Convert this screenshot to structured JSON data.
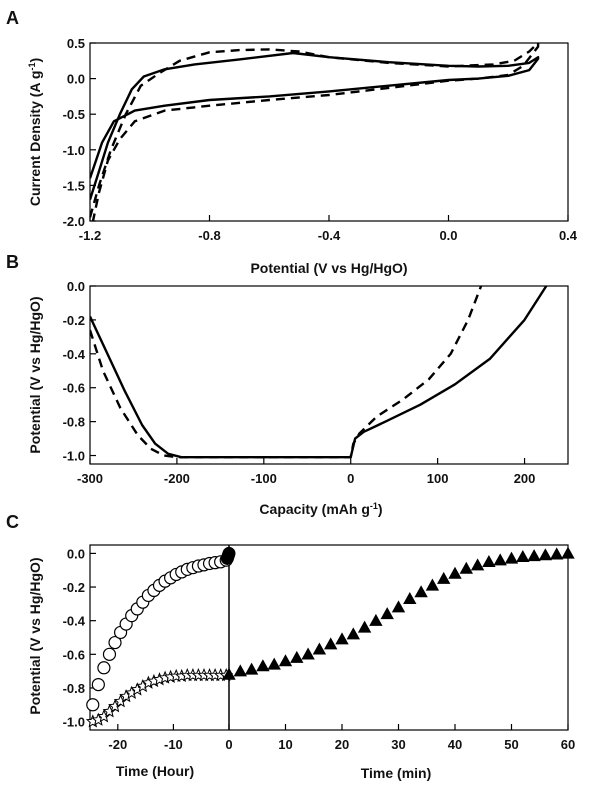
{
  "chart_data": [
    {
      "panel": "A",
      "type": "line",
      "xlabel": "Potential (V vs Hg/HgO)",
      "ylabel_main": "Current Density (A g",
      "ylabel_sup": "-1",
      "ylabel_tail": ")",
      "xlim": [
        -1.2,
        0.4
      ],
      "ylim": [
        -2.0,
        0.5
      ],
      "xticks": [
        "-1.2",
        "-0.8",
        "-0.4",
        "0.0",
        "0.4"
      ],
      "xtick_values": [
        -1.2,
        -0.8,
        -0.4,
        0.0,
        0.4
      ],
      "yticks": [
        "0.5",
        "0.0",
        "-0.5",
        "-1.0",
        "-1.5",
        "-2.0"
      ],
      "ytick_values": [
        0.5,
        0.0,
        -0.5,
        -1.0,
        -1.5,
        -2.0
      ],
      "series": [
        {
          "style": "solid",
          "x": [
            -1.2,
            -1.17,
            -1.14,
            -1.1,
            -1.06,
            -1.02,
            -0.95,
            -0.85,
            -0.7,
            -0.52,
            -0.4,
            -0.2,
            0.0,
            0.1,
            0.2,
            0.27,
            0.3,
            0.3,
            0.27,
            0.2,
            0.1,
            0.0,
            -0.2,
            -0.4,
            -0.6,
            -0.8,
            -0.95,
            -1.05,
            -1.12,
            -1.16,
            -1.2
          ],
          "y": [
            -1.7,
            -1.3,
            -0.9,
            -0.5,
            -0.15,
            0.03,
            0.13,
            0.2,
            0.27,
            0.36,
            0.3,
            0.23,
            0.18,
            0.17,
            0.18,
            0.22,
            0.3,
            0.28,
            0.12,
            0.04,
            0.0,
            -0.02,
            -0.1,
            -0.18,
            -0.25,
            -0.3,
            -0.38,
            -0.45,
            -0.6,
            -0.9,
            -1.4
          ]
        },
        {
          "style": "dashed",
          "x": [
            -1.2,
            -1.17,
            -1.13,
            -1.08,
            -1.03,
            -0.97,
            -0.9,
            -0.8,
            -0.7,
            -0.6,
            -0.5,
            -0.4,
            -0.2,
            0.0,
            0.15,
            0.22,
            0.27,
            0.3,
            0.3,
            0.25,
            0.2,
            0.1,
            0.0,
            -0.2,
            -0.4,
            -0.6,
            -0.8,
            -0.95,
            -1.05,
            -1.1,
            -1.14,
            -1.17,
            -1.19
          ],
          "y": [
            -1.95,
            -1.5,
            -1.0,
            -0.5,
            -0.1,
            0.07,
            0.25,
            0.37,
            0.4,
            0.41,
            0.38,
            0.3,
            0.22,
            0.17,
            0.2,
            0.25,
            0.38,
            0.5,
            0.45,
            0.18,
            0.05,
            0.0,
            -0.03,
            -0.13,
            -0.23,
            -0.3,
            -0.38,
            -0.45,
            -0.6,
            -0.85,
            -1.15,
            -1.6,
            -2.0
          ]
        }
      ]
    },
    {
      "panel": "B",
      "type": "line",
      "xlabel_main": "Capacity (mAh g",
      "xlabel_sup": "-1",
      "xlabel_tail": ")",
      "ylabel": "Potential (V vs Hg/HgO)",
      "xlim": [
        -300,
        250
      ],
      "ylim": [
        -1.05,
        0.0
      ],
      "xticks": [
        "-300",
        "-200",
        "-100",
        "0",
        "100",
        "200"
      ],
      "xtick_values": [
        -300,
        -200,
        -100,
        0,
        100,
        200
      ],
      "yticks": [
        "0.0",
        "-0.2",
        "-0.4",
        "-0.6",
        "-0.8",
        "-1.0"
      ],
      "ytick_values": [
        0.0,
        -0.2,
        -0.4,
        -0.6,
        -0.8,
        -1.0
      ],
      "series": [
        {
          "style": "solid",
          "x": [
            -300,
            -280,
            -260,
            -240,
            -225,
            -210,
            -195,
            -150,
            -100,
            -50,
            -10,
            0,
            5,
            15,
            40,
            80,
            120,
            160,
            200,
            225
          ],
          "y": [
            -0.18,
            -0.4,
            -0.62,
            -0.82,
            -0.93,
            -0.99,
            -1.01,
            -1.01,
            -1.01,
            -1.01,
            -1.01,
            -1.01,
            -0.9,
            -0.86,
            -0.8,
            -0.7,
            -0.58,
            -0.43,
            -0.2,
            0.0
          ],
          "name": ""
        },
        {
          "style": "dashed",
          "x": [
            -300,
            -285,
            -265,
            -245,
            -230,
            -215,
            -200,
            -150,
            -100,
            -50,
            -10,
            0,
            3,
            10,
            30,
            60,
            90,
            115,
            135,
            150
          ],
          "y": [
            -0.26,
            -0.5,
            -0.72,
            -0.88,
            -0.96,
            -1.0,
            -1.01,
            -1.01,
            -1.01,
            -1.01,
            -1.01,
            -1.01,
            -0.93,
            -0.87,
            -0.77,
            -0.67,
            -0.55,
            -0.4,
            -0.2,
            0.0
          ]
        }
      ]
    },
    {
      "panel": "C",
      "type": "scatter",
      "ylabel": "Potential (V vs Hg/HgO)",
      "xlabel_left": "Time (Hour)",
      "xlabel_right": "Time (min)",
      "xlim_left": [
        -25,
        0
      ],
      "xlim_right": [
        0,
        60
      ],
      "ylim": [
        -1.05,
        0.05
      ],
      "xticks_left": [
        "-20",
        "-10",
        "0"
      ],
      "xtick_values_left": [
        -20,
        -10,
        0
      ],
      "xticks_right": [
        "10",
        "20",
        "30",
        "40",
        "50",
        "60"
      ],
      "xtick_values_right": [
        10,
        20,
        30,
        40,
        50,
        60
      ],
      "yticks": [
        "0.0",
        "-0.2",
        "-0.4",
        "-0.6",
        "-0.8",
        "-1.0"
      ],
      "ytick_values": [
        0.0,
        -0.2,
        -0.4,
        -0.6,
        -0.8,
        -1.0
      ],
      "series": [
        {
          "marker": "circle-open",
          "axis": "left",
          "x": [
            -24.5,
            -23.5,
            -22.5,
            -21.5,
            -20.5,
            -19.5,
            -18.5,
            -17.5,
            -16.5,
            -15.5,
            -14.5,
            -13.5,
            -12.5,
            -11.5,
            -10.5,
            -9.5,
            -8.5,
            -7.5,
            -6.5,
            -5.5,
            -4.5,
            -3.5,
            -2.5,
            -1.5,
            -0.5
          ],
          "y": [
            -0.9,
            -0.78,
            -0.68,
            -0.6,
            -0.53,
            -0.47,
            -0.42,
            -0.37,
            -0.33,
            -0.29,
            -0.25,
            -0.22,
            -0.19,
            -0.165,
            -0.145,
            -0.125,
            -0.11,
            -0.095,
            -0.085,
            -0.075,
            -0.068,
            -0.06,
            -0.055,
            -0.05,
            -0.04
          ]
        },
        {
          "marker": "circle-filled",
          "axis": "left",
          "x": [
            -0.3,
            -0.2,
            -0.1,
            0.0
          ],
          "y": [
            -0.03,
            -0.02,
            -0.01,
            0.0
          ]
        },
        {
          "marker": "star-open",
          "axis": "left",
          "x": [
            -24.5,
            -23.5,
            -22.5,
            -21.5,
            -20.5,
            -19.5,
            -18.5,
            -17.5,
            -16.5,
            -15.5,
            -14.5,
            -13.5,
            -12.5,
            -11.5,
            -10.5,
            -9.5,
            -8.5,
            -7.5,
            -6.5,
            -5.5,
            -4.5,
            -3.5,
            -2.5,
            -1.5,
            -0.5
          ],
          "y": [
            -1.0,
            -0.99,
            -0.97,
            -0.94,
            -0.91,
            -0.88,
            -0.85,
            -0.83,
            -0.81,
            -0.79,
            -0.77,
            -0.76,
            -0.75,
            -0.74,
            -0.735,
            -0.73,
            -0.73,
            -0.725,
            -0.725,
            -0.725,
            -0.725,
            -0.725,
            -0.725,
            -0.725,
            -0.725
          ]
        },
        {
          "marker": "triangle-filled",
          "axis": "right",
          "x": [
            0,
            2,
            4,
            6,
            8,
            10,
            12,
            14,
            16,
            18,
            20,
            22,
            24,
            26,
            28,
            30,
            32,
            34,
            36,
            38,
            40,
            42,
            44,
            46,
            48,
            50,
            52,
            54,
            56,
            58,
            60
          ],
          "y": [
            -0.72,
            -0.7,
            -0.69,
            -0.67,
            -0.66,
            -0.64,
            -0.62,
            -0.6,
            -0.57,
            -0.54,
            -0.51,
            -0.48,
            -0.44,
            -0.4,
            -0.36,
            -0.32,
            -0.27,
            -0.23,
            -0.19,
            -0.15,
            -0.12,
            -0.09,
            -0.07,
            -0.05,
            -0.04,
            -0.03,
            -0.02,
            -0.015,
            -0.01,
            -0.005,
            0.0
          ]
        }
      ]
    }
  ]
}
